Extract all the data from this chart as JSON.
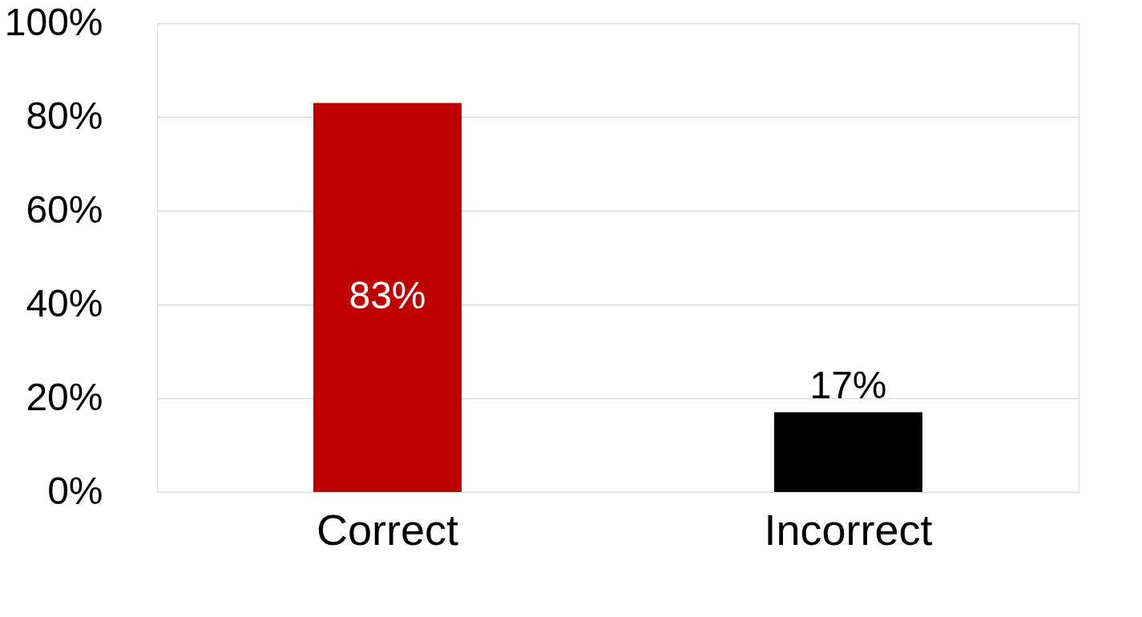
{
  "chart_data": {
    "type": "bar",
    "categories": [
      "Correct",
      "Incorrect"
    ],
    "values": [
      83,
      17
    ],
    "colors": [
      "#c00000",
      "#000000"
    ],
    "value_labels": [
      "83%",
      "17%"
    ],
    "ylim": [
      0,
      100
    ],
    "yticks": [
      {
        "value": 0,
        "label": "0%"
      },
      {
        "value": 20,
        "label": "20%"
      },
      {
        "value": 40,
        "label": "40%"
      },
      {
        "value": 60,
        "label": "60%"
      },
      {
        "value": 80,
        "label": "80%"
      },
      {
        "value": 100,
        "label": "100%"
      }
    ],
    "grid": "y"
  }
}
